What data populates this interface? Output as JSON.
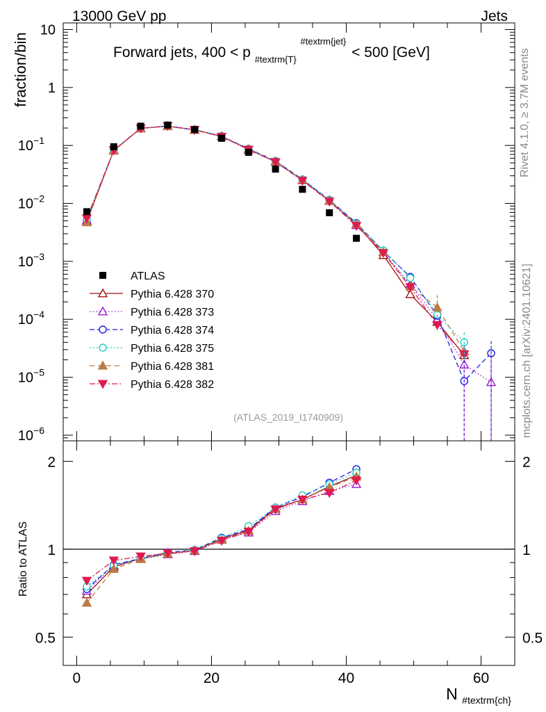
{
  "header": {
    "energy": "13000 GeV pp",
    "category": "Jets"
  },
  "side_labels": {
    "rivet": "Rivet 4.1.0, ≥ 3.7M events",
    "mcplots": "mcplots.cern.ch [arXiv:2401.10621]"
  },
  "chart_data": {
    "type": "line",
    "title": "Forward jets, 400 < p_{#textrm{T}}^{#textrm{jet}} < 500 [GeV]",
    "title_parts": {
      "pre": "Forward jets, 400 < p",
      "sub": "#textrm{T}",
      "sup": "#textrm{jet}",
      "post": " < 500 [GeV]"
    },
    "analysis_label": "(ATLAS_2019_I1740909)",
    "xlabel_main": "N",
    "xlabel_sub": "#textrm{ch}",
    "ylabel_top": "fraction/bin",
    "ylabel_bottom": "Ratio to ATLAS",
    "xlim": [
      -2,
      65
    ],
    "top_ylim": [
      8e-07,
      13
    ],
    "ratio_ylim": [
      0.4,
      2.35
    ],
    "top_y_ticks": [
      {
        "v": 10,
        "label": "10",
        "exp": ""
      },
      {
        "v": 1,
        "label": "1",
        "exp": ""
      },
      {
        "v": 0.1,
        "label": "10",
        "exp": "−1"
      },
      {
        "v": 0.01,
        "label": "10",
        "exp": "−2"
      },
      {
        "v": 0.001,
        "label": "10",
        "exp": "−3"
      },
      {
        "v": 0.0001,
        "label": "10",
        "exp": "−4"
      },
      {
        "v": 1e-05,
        "label": "10",
        "exp": "−5"
      },
      {
        "v": 1e-06,
        "label": "10",
        "exp": "−6"
      }
    ],
    "ratio_y_ticks": [
      {
        "v": 0.5,
        "label": "0.5"
      },
      {
        "v": 1,
        "label": "1"
      },
      {
        "v": 2,
        "label": "2"
      }
    ],
    "x_ticks": [
      {
        "v": 0,
        "label": "0"
      },
      {
        "v": 20,
        "label": "20"
      },
      {
        "v": 40,
        "label": "40"
      },
      {
        "v": 60,
        "label": "60"
      }
    ],
    "x": [
      1.5,
      5.5,
      9.5,
      13.5,
      17.5,
      21.5,
      25.5,
      29.5,
      33.5,
      37.5,
      41.5,
      45.5,
      49.5,
      53.5,
      57.5,
      61.5
    ],
    "data": {
      "name": "ATLAS",
      "values": [
        0.0072,
        0.095,
        0.215,
        0.225,
        0.188,
        0.133,
        0.076,
        0.039,
        0.0175,
        0.0069,
        0.0025,
        null,
        null,
        null,
        null,
        null
      ]
    },
    "series": [
      {
        "name": "Pythia 6.428 370",
        "color": "#a01010",
        "dash": "",
        "marker": "tri-up-open",
        "values": [
          0.0049,
          0.082,
          0.198,
          0.215,
          0.186,
          0.144,
          0.086,
          0.053,
          0.025,
          0.0112,
          0.0044,
          0.00128,
          0.00027,
          9e-05,
          2.4e-05,
          null
        ],
        "ratio": [
          0.7,
          0.87,
          0.93,
          0.965,
          0.99,
          1.085,
          1.16,
          1.38,
          1.48,
          1.64,
          1.79
        ]
      },
      {
        "name": "Pythia 6.428 373",
        "color": "#9a1ad0",
        "dash": "1.5,3",
        "marker": "tri-up-open",
        "values": [
          0.0051,
          0.082,
          0.196,
          0.214,
          0.185,
          0.142,
          0.084,
          0.052,
          0.025,
          0.011,
          0.0042,
          0.00145,
          0.0004,
          0.0001,
          1.65e-05,
          8.2e-06
        ],
        "ratio": [
          0.72,
          0.88,
          0.925,
          0.96,
          0.985,
          1.075,
          1.14,
          1.35,
          1.46,
          1.58,
          1.67
        ]
      },
      {
        "name": "Pythia 6.428 374",
        "color": "#1a1ae6",
        "dash": "7,4",
        "marker": "circle-open",
        "values": [
          0.0051,
          0.083,
          0.198,
          0.216,
          0.187,
          0.145,
          0.088,
          0.054,
          0.026,
          0.0115,
          0.0046,
          0.0015,
          0.00054,
          0.000115,
          8.6e-06,
          2.6e-05
        ],
        "ratio": [
          0.73,
          0.885,
          0.93,
          0.975,
          0.995,
          1.095,
          1.17,
          1.39,
          1.51,
          1.69,
          1.88
        ]
      },
      {
        "name": "Pythia 6.428 375",
        "color": "#18d0c0",
        "dash": "2,3",
        "marker": "circle-open",
        "values": [
          0.0053,
          0.083,
          0.199,
          0.217,
          0.188,
          0.145,
          0.088,
          0.054,
          0.026,
          0.0114,
          0.0045,
          0.00155,
          0.00052,
          0.00012,
          4e-05,
          null
        ],
        "ratio": [
          0.745,
          0.88,
          0.93,
          0.97,
          0.995,
          1.09,
          1.2,
          1.39,
          1.53,
          1.67,
          1.83
        ]
      },
      {
        "name": "Pythia 6.428 381",
        "color": "#bb7a45",
        "dash": "7,5",
        "marker": "tri-up-filled",
        "values": [
          0.0047,
          0.081,
          0.197,
          0.215,
          0.186,
          0.143,
          0.086,
          0.053,
          0.025,
          0.0111,
          0.0044,
          0.00145,
          0.00037,
          0.00016,
          2.8e-05,
          null
        ],
        "ratio": [
          0.655,
          0.855,
          0.925,
          0.965,
          0.99,
          1.075,
          1.155,
          1.37,
          1.48,
          1.63,
          1.77
        ]
      },
      {
        "name": "Pythia 6.428 382",
        "color": "#e01a50",
        "dash": "8,3,2,3",
        "marker": "tri-down-filled",
        "values": [
          0.0055,
          0.083,
          0.198,
          0.217,
          0.186,
          0.142,
          0.085,
          0.052,
          0.0247,
          0.0108,
          0.0041,
          0.0014,
          0.00036,
          8e-05,
          2.5e-05,
          null
        ],
        "ratio": [
          0.78,
          0.915,
          0.945,
          0.97,
          0.985,
          1.07,
          1.15,
          1.37,
          1.48,
          1.56,
          1.72
        ]
      }
    ]
  }
}
